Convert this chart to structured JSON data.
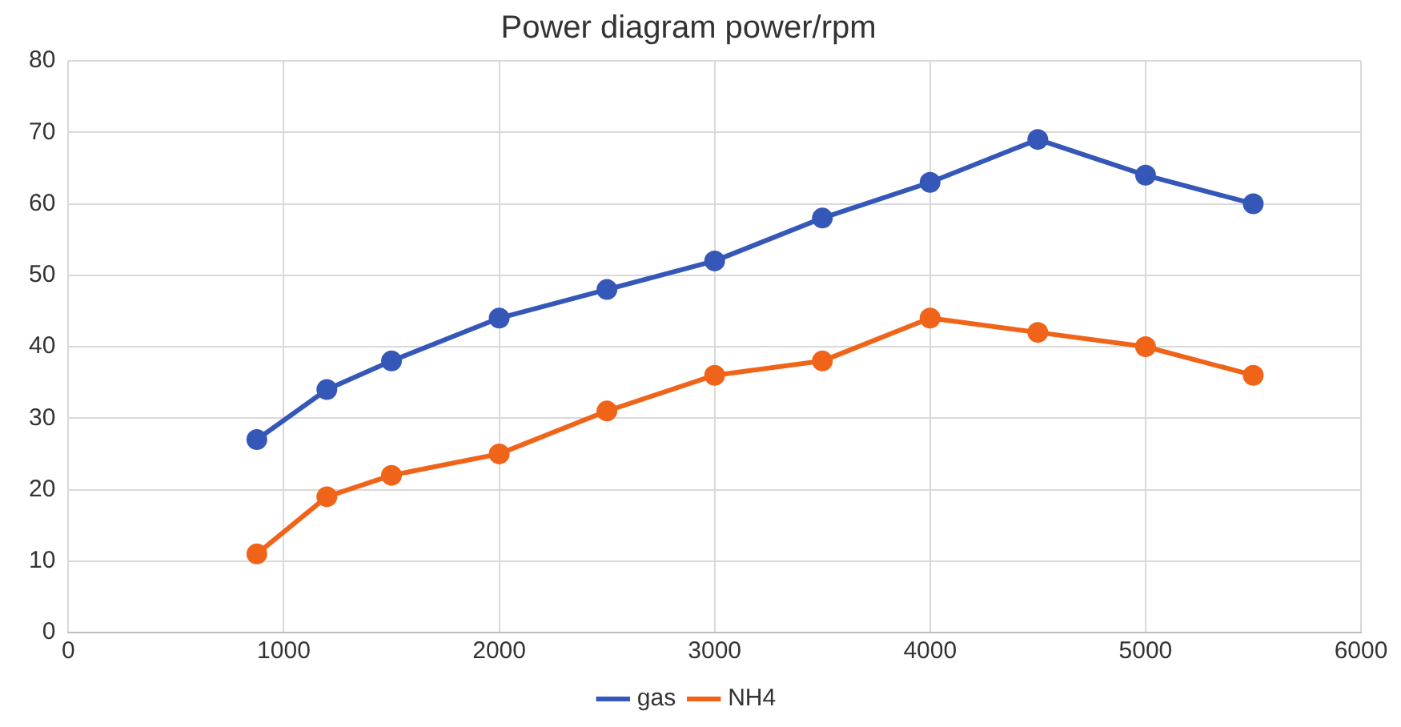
{
  "chart_data": {
    "type": "line",
    "title": "Power diagram power/rpm",
    "x": [
      875,
      1200,
      1500,
      2000,
      2500,
      3000,
      3500,
      4000,
      4500,
      5000,
      5500
    ],
    "series": [
      {
        "name": "gas",
        "color": "#3558b8",
        "values": [
          27,
          34,
          38,
          44,
          48,
          52,
          58,
          63,
          69,
          64,
          60
        ]
      },
      {
        "name": "NH4",
        "color": "#f0641a",
        "values": [
          11,
          19,
          22,
          25,
          31,
          36,
          38,
          44,
          42,
          40,
          36
        ]
      }
    ],
    "xlim": [
      0,
      6000
    ],
    "xticks": [
      0,
      1000,
      2000,
      3000,
      4000,
      5000,
      6000
    ],
    "ylim": [
      0,
      80
    ],
    "yticks": [
      0,
      10,
      20,
      30,
      40,
      50,
      60,
      70,
      80
    ],
    "grid": true,
    "legend": "bottom",
    "marker": "circle",
    "line_style": "solid"
  }
}
